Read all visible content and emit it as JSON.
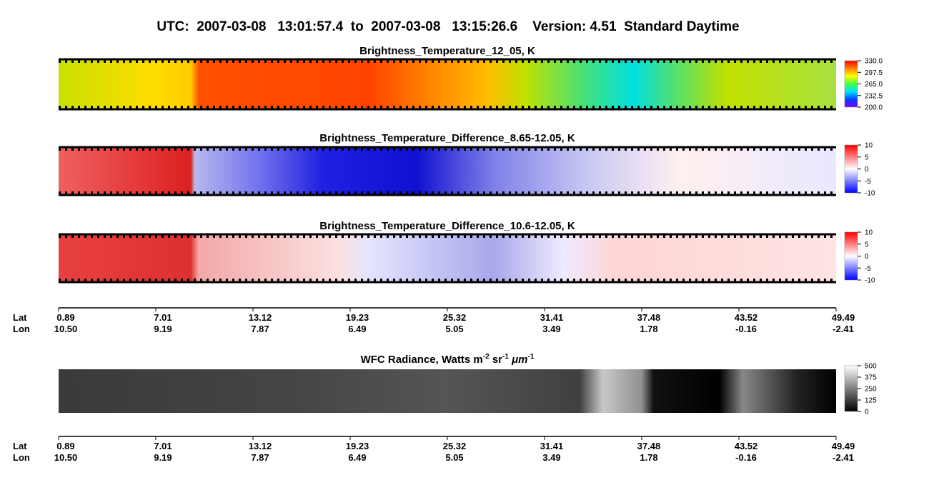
{
  "header": {
    "title": "UTC:  2007-03-08   13:01:57.4  to  2007-03-08   13:15:26.6    Version: 4.51  Standard Daytime"
  },
  "panels": [
    {
      "title": "Brightness_Temperature_12_05, K",
      "colorbar": {
        "lim": [
          200,
          330
        ],
        "colors": [
          "#8000ff",
          "#0040ff",
          "#00e0ff",
          "#40ff40",
          "#ffff00",
          "#ff8000",
          "#ff0000"
        ],
        "ticks": [
          {
            "value": 330,
            "label": "330.0"
          },
          {
            "value": 297.5,
            "label": "297.5"
          },
          {
            "value": 265,
            "label": "265.0"
          },
          {
            "value": 232.5,
            "label": "232.5"
          },
          {
            "value": 200,
            "label": "200.0"
          }
        ]
      }
    },
    {
      "title": "Brightness_Temperature_Difference_8.65-12.05, K",
      "colorbar": {
        "lim": [
          -10,
          10
        ],
        "colors": [
          "#0000ff",
          "#ffffff",
          "#ff0000"
        ],
        "ticks": [
          10,
          5,
          0,
          -5,
          -10
        ]
      }
    },
    {
      "title": "Brightness_Temperature_Difference_10.6-12.05, K",
      "colorbar": {
        "lim": [
          -10,
          10
        ],
        "colors": [
          "#0000ff",
          "#ffffff",
          "#ff0000"
        ],
        "ticks": [
          10,
          5,
          0,
          -5,
          -10
        ]
      }
    },
    {
      "title": [
        "WFC Radiance, Watts m",
        "-2",
        " sr",
        "-1",
        " μm",
        "-1"
      ],
      "colorbar": {
        "lim": [
          0,
          500
        ],
        "colors": [
          "#000000",
          "#ffffff"
        ],
        "ticks": [
          500,
          375,
          250,
          125,
          0
        ]
      }
    }
  ],
  "axis": {
    "lat_label": "Lat",
    "lon_label": "Lon",
    "lat": [
      "0.89",
      "7.01",
      "13.12",
      "19.23",
      "25.32",
      "31.41",
      "37.48",
      "43.52",
      "49.49"
    ],
    "lon": [
      "10.50",
      "9.19",
      "7.87",
      "6.49",
      "5.05",
      "3.49",
      "1.78",
      "-0.16",
      "-2.41"
    ]
  }
}
